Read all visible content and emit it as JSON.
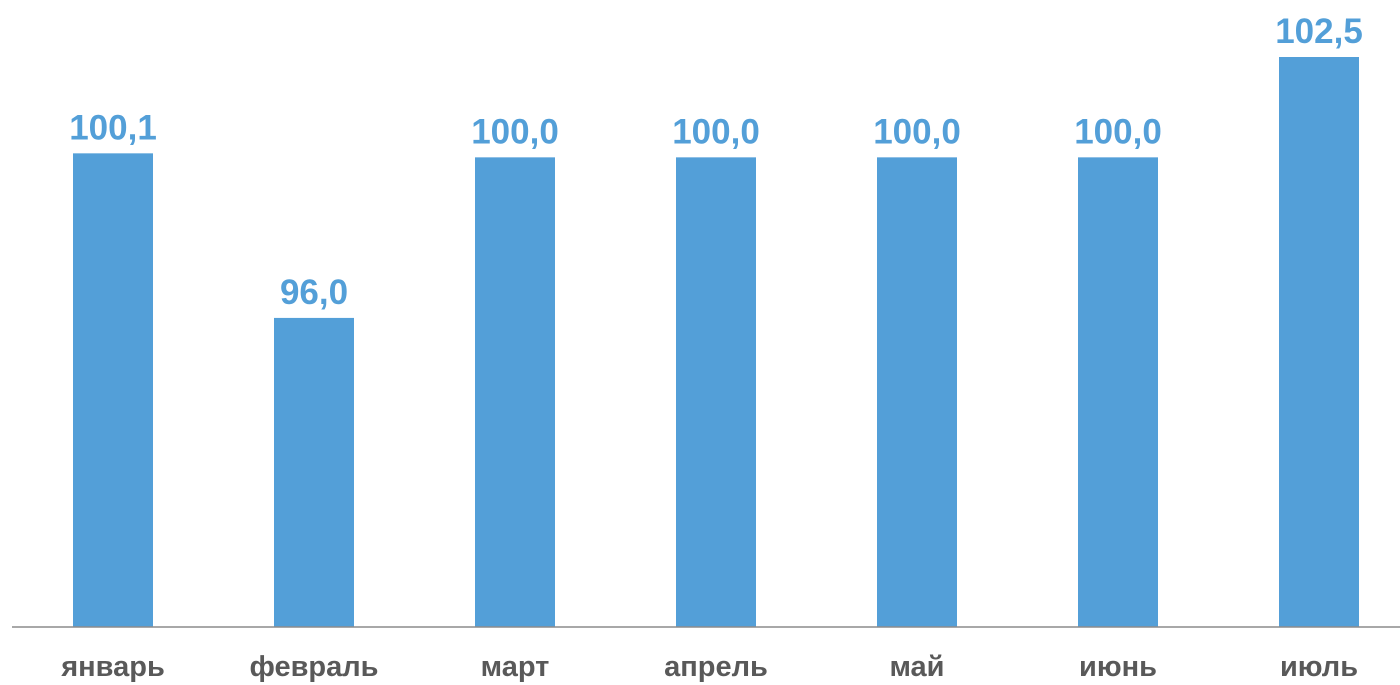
{
  "chart_data": {
    "type": "bar",
    "title": "",
    "xlabel": "",
    "ylabel": "",
    "categories": [
      "январь",
      "февраль",
      "март",
      "апрель",
      "май",
      "июнь",
      "июль"
    ],
    "values": [
      100.1,
      96.0,
      100.0,
      100.0,
      100.0,
      100.0,
      102.5
    ],
    "value_labels": [
      "100,1",
      "96,0",
      "100,0",
      "100,0",
      "100,0",
      "100,0",
      "102,5"
    ],
    "ylim": [
      88.3,
      102.5
    ],
    "grid": false,
    "legend": "none",
    "colors": {
      "bar": "#539fd8",
      "value_label": "#539fd8",
      "category_label": "#595959",
      "axis": "#8c8c8c"
    }
  }
}
